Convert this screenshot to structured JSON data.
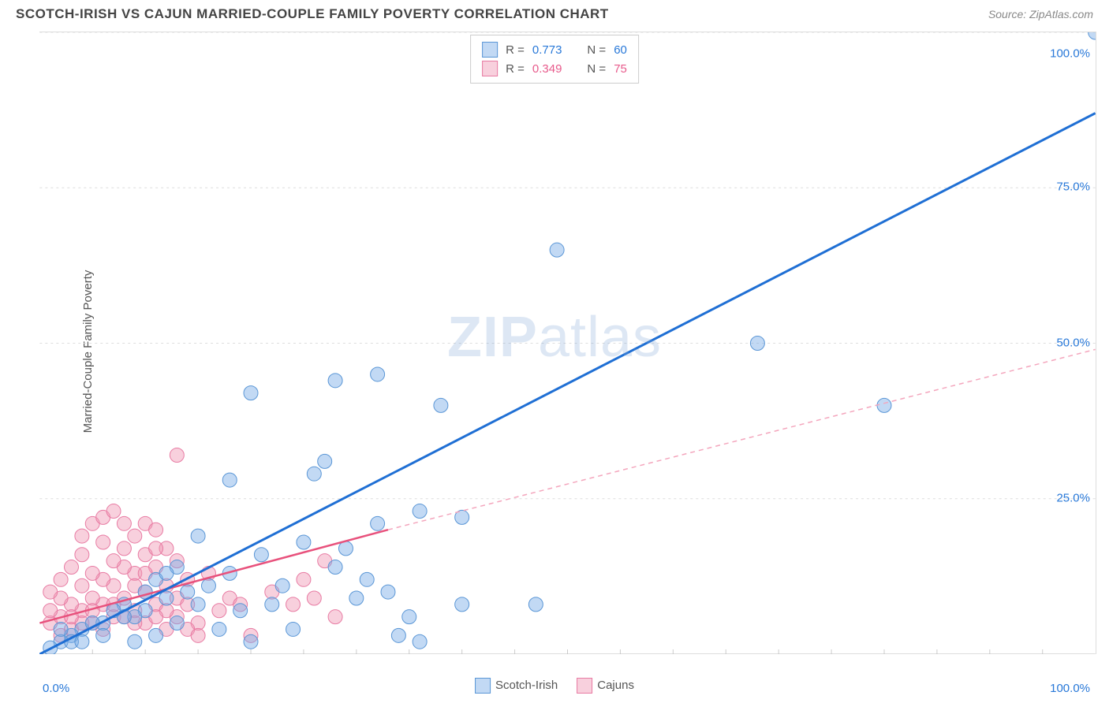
{
  "header": {
    "title": "SCOTCH-IRISH VS CAJUN MARRIED-COUPLE FAMILY POVERTY CORRELATION CHART",
    "source_prefix": "Source: ",
    "source_name": "ZipAtlas.com"
  },
  "watermark": {
    "zip": "ZIP",
    "atlas": "atlas"
  },
  "chart": {
    "type": "scatter",
    "ylabel": "Married-Couple Family Poverty",
    "xlim": [
      0,
      100
    ],
    "ylim": [
      0,
      100
    ],
    "x_ticks": [
      0,
      100
    ],
    "x_tick_labels": [
      "0.0%",
      "100.0%"
    ],
    "y_ticks": [
      25,
      50,
      75,
      100
    ],
    "y_tick_labels": [
      "25.0%",
      "50.0%",
      "75.0%",
      "100.0%"
    ],
    "grid_color": "#dddddd",
    "background_color": "#ffffff",
    "marker_radius": 9,
    "marker_stroke_width": 1,
    "series": {
      "scotch_irish": {
        "label": "Scotch-Irish",
        "fill": "rgba(120,170,230,0.45)",
        "stroke": "#5a96d6",
        "r_value": "0.773",
        "n_value": "60",
        "trend": {
          "x1": 0,
          "y1": 0,
          "x2": 100,
          "y2": 87,
          "stroke": "#1f6fd4",
          "width": 3,
          "dash": "none"
        },
        "points": [
          [
            100,
            100
          ],
          [
            68,
            50
          ],
          [
            80,
            40
          ],
          [
            49,
            65
          ],
          [
            38,
            40
          ],
          [
            32,
            45
          ],
          [
            28,
            44
          ],
          [
            20,
            42
          ],
          [
            26,
            29
          ],
          [
            32,
            21
          ],
          [
            36,
            23
          ],
          [
            40,
            22
          ],
          [
            10,
            7
          ],
          [
            12,
            9
          ],
          [
            9,
            6
          ],
          [
            6,
            5
          ],
          [
            4,
            4
          ],
          [
            3,
            3
          ],
          [
            2,
            2
          ],
          [
            1,
            1
          ],
          [
            8,
            8
          ],
          [
            14,
            10
          ],
          [
            16,
            11
          ],
          [
            18,
            13
          ],
          [
            22,
            8
          ],
          [
            20,
            2
          ],
          [
            24,
            4
          ],
          [
            28,
            14
          ],
          [
            30,
            9
          ],
          [
            34,
            3
          ],
          [
            36,
            2
          ],
          [
            40,
            8
          ],
          [
            47,
            8
          ],
          [
            18,
            28
          ],
          [
            15,
            19
          ],
          [
            13,
            14
          ],
          [
            11,
            12
          ],
          [
            7,
            7
          ],
          [
            5,
            5
          ],
          [
            3,
            2
          ],
          [
            2,
            4
          ],
          [
            17,
            4
          ],
          [
            21,
            16
          ],
          [
            25,
            18
          ],
          [
            27,
            31
          ],
          [
            11,
            3
          ],
          [
            9,
            2
          ],
          [
            6,
            3
          ],
          [
            4,
            2
          ],
          [
            12,
            13
          ],
          [
            15,
            8
          ],
          [
            10,
            10
          ],
          [
            8,
            6
          ],
          [
            13,
            5
          ],
          [
            19,
            7
          ],
          [
            23,
            11
          ],
          [
            29,
            17
          ],
          [
            31,
            12
          ],
          [
            33,
            10
          ],
          [
            35,
            6
          ]
        ]
      },
      "cajuns": {
        "label": "Cajuns",
        "fill": "rgba(240,150,180,0.45)",
        "stroke": "#e87ba3",
        "r_value": "0.349",
        "n_value": "75",
        "trend_solid": {
          "x1": 0,
          "y1": 5,
          "x2": 33,
          "y2": 20,
          "stroke": "#e8517c",
          "width": 2.5
        },
        "trend_dash": {
          "x1": 33,
          "y1": 20,
          "x2": 100,
          "y2": 49,
          "stroke": "#f4a6bd",
          "width": 1.5,
          "dash": "6,5"
        },
        "points": [
          [
            1,
            5
          ],
          [
            2,
            6
          ],
          [
            3,
            4
          ],
          [
            4,
            7
          ],
          [
            5,
            5
          ],
          [
            6,
            8
          ],
          [
            7,
            6
          ],
          [
            8,
            9
          ],
          [
            9,
            7
          ],
          [
            10,
            10
          ],
          [
            11,
            8
          ],
          [
            12,
            11
          ],
          [
            13,
            6
          ],
          [
            14,
            12
          ],
          [
            15,
            5
          ],
          [
            16,
            13
          ],
          [
            17,
            7
          ],
          [
            18,
            9
          ],
          [
            19,
            8
          ],
          [
            20,
            3
          ],
          [
            2,
            3
          ],
          [
            3,
            8
          ],
          [
            4,
            5
          ],
          [
            5,
            9
          ],
          [
            6,
            4
          ],
          [
            7,
            11
          ],
          [
            8,
            6
          ],
          [
            9,
            13
          ],
          [
            10,
            5
          ],
          [
            11,
            14
          ],
          [
            12,
            7
          ],
          [
            13,
            15
          ],
          [
            14,
            4
          ],
          [
            1,
            7
          ],
          [
            2,
            9
          ],
          [
            3,
            6
          ],
          [
            4,
            11
          ],
          [
            5,
            7
          ],
          [
            6,
            12
          ],
          [
            7,
            8
          ],
          [
            8,
            14
          ],
          [
            9,
            5
          ],
          [
            10,
            16
          ],
          [
            11,
            6
          ],
          [
            12,
            17
          ],
          [
            4,
            19
          ],
          [
            5,
            21
          ],
          [
            6,
            22
          ],
          [
            7,
            23
          ],
          [
            8,
            21
          ],
          [
            9,
            19
          ],
          [
            10,
            21
          ],
          [
            11,
            20
          ],
          [
            13,
            32
          ],
          [
            3,
            14
          ],
          [
            2,
            12
          ],
          [
            1,
            10
          ],
          [
            4,
            16
          ],
          [
            5,
            13
          ],
          [
            6,
            18
          ],
          [
            7,
            15
          ],
          [
            8,
            17
          ],
          [
            9,
            11
          ],
          [
            10,
            13
          ],
          [
            11,
            17
          ],
          [
            12,
            4
          ],
          [
            13,
            9
          ],
          [
            14,
            8
          ],
          [
            15,
            3
          ],
          [
            25,
            12
          ],
          [
            27,
            15
          ],
          [
            28,
            6
          ],
          [
            22,
            10
          ],
          [
            24,
            8
          ],
          [
            26,
            9
          ]
        ]
      }
    },
    "legend_stats": {
      "r_label": "R =",
      "n_label": "N ="
    }
  }
}
